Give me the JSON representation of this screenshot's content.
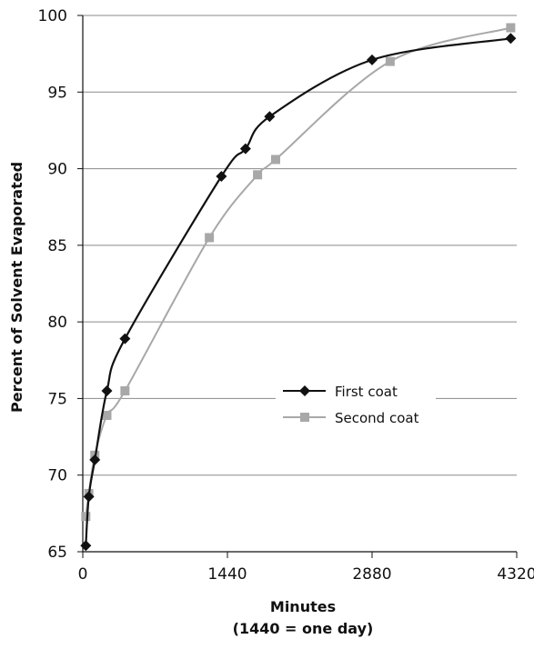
{
  "chart_data": {
    "type": "line",
    "title": "",
    "xlabel": "Minutes",
    "xlabel_note": "(1440 = one day)",
    "ylabel": "Percent of Solvent Evaporated",
    "xlim": [
      0,
      4320
    ],
    "ylim": [
      65,
      100
    ],
    "x_ticks": [
      "0",
      "1440",
      "2880",
      "4320"
    ],
    "y_ticks": [
      "65",
      "70",
      "75",
      "80",
      "85",
      "90",
      "95",
      "100"
    ],
    "grid": "horizontal",
    "legend_position": "lower-right",
    "series": [
      {
        "name": "First coat",
        "color": "#111111",
        "marker": "diamond",
        "x": [
          30,
          60,
          120,
          240,
          420,
          1380,
          1620,
          1860,
          2880,
          4260
        ],
        "y": [
          65.4,
          68.6,
          71.0,
          75.5,
          78.9,
          89.5,
          91.3,
          93.4,
          97.1,
          98.5
        ]
      },
      {
        "name": "Second coat",
        "color": "#a8a8a8",
        "marker": "square",
        "x": [
          30,
          60,
          120,
          240,
          420,
          1260,
          1740,
          1920,
          3060,
          4260
        ],
        "y": [
          67.3,
          68.8,
          71.3,
          73.9,
          75.5,
          85.5,
          89.6,
          90.6,
          97.0,
          99.2
        ]
      }
    ]
  }
}
